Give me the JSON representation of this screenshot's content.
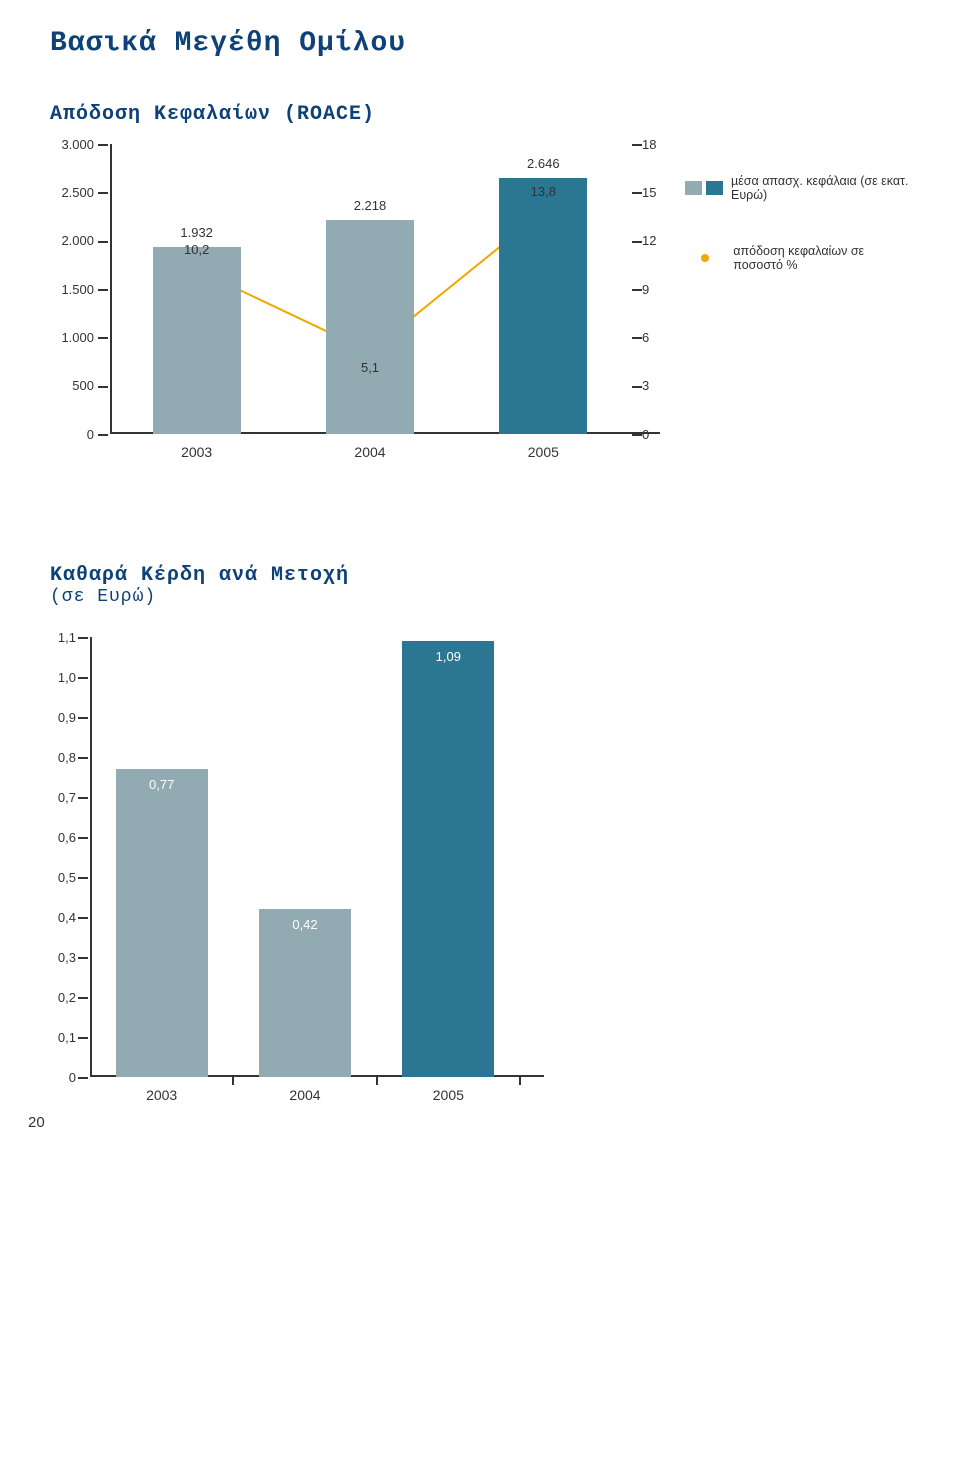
{
  "page_title": "Βασικά Μεγέθη Οµίλου",
  "roace": {
    "subtitle": "Απόδοση Κεφαλαίων (ROACE)",
    "type": "bar+line",
    "categories": [
      "2003",
      "2004",
      "2005"
    ],
    "bars": {
      "values": [
        1932,
        2218,
        2646
      ],
      "value_display": [
        "1.932",
        "2.218",
        "2.646"
      ],
      "colors": [
        "#92aab1",
        "#92aab1",
        "#2b7692"
      ]
    },
    "line": {
      "values": [
        10.2,
        5.1,
        13.8
      ],
      "value_display": [
        "10,2",
        "5,1",
        "13,8"
      ],
      "line_color": "#f0a800",
      "point_color": "#f0a800",
      "line_width": 2
    },
    "y_left": {
      "min": 0,
      "max": 3000,
      "step": 500,
      "ticks_display": [
        "0",
        "500",
        "1.000",
        "1.500",
        "2.000",
        "2.500",
        "3.000"
      ]
    },
    "y_right": {
      "min": 0,
      "max": 18,
      "step": 3,
      "ticks_display": [
        "0",
        "3",
        "6",
        "9",
        "12",
        "15",
        "18"
      ]
    },
    "legend": {
      "bars_label": "µέσα απασχ. κεφάλαια (σε εκατ. Ευρώ)",
      "line_label": "απόδοση κεφαλαίων σε ποσοστό %"
    },
    "title_fontsize": 28,
    "subtitle_fontsize": 20,
    "background_color": "#ffffff"
  },
  "eps": {
    "subtitle": "Καθαρά Κέρδη ανά Μετοχή",
    "subtitle_paren": "(σε Ευρώ)",
    "type": "bar",
    "categories": [
      "2003",
      "2004",
      "2005"
    ],
    "values": [
      0.77,
      0.42,
      1.09
    ],
    "value_display": [
      "0,77",
      "0,42",
      "1,09"
    ],
    "bar_colors": [
      "#92aab1",
      "#92aab1",
      "#2b7692"
    ],
    "y": {
      "min": 0,
      "max": 1.1,
      "step": 0.1,
      "ticks_display": [
        "0",
        "0,1",
        "0,2",
        "0,3",
        "0,4",
        "0,5",
        "0,6",
        "0,7",
        "0,8",
        "0,9",
        "1,0",
        "1,1"
      ]
    },
    "background_color": "#ffffff"
  },
  "page_number": "20"
}
